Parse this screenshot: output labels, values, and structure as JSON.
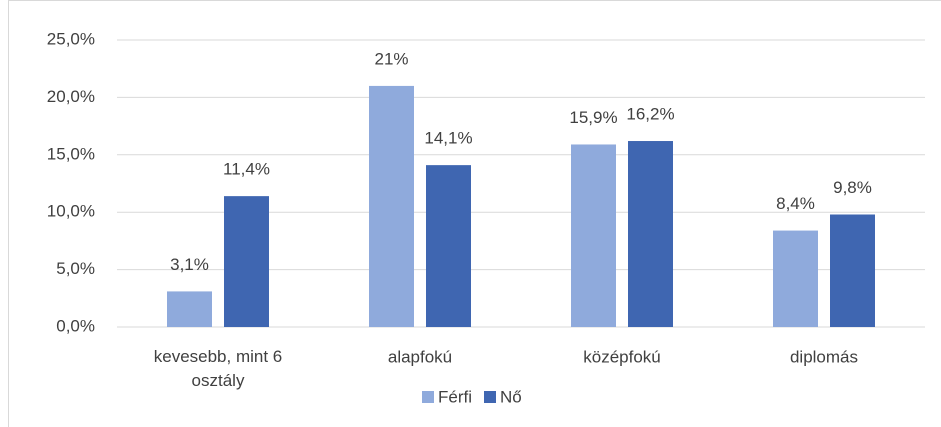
{
  "chart_data": {
    "type": "bar",
    "categories": [
      "kevesebb, mint 6 osztály",
      "alapfokú",
      "középfokú",
      "diplomás"
    ],
    "series": [
      {
        "name": "Férfi",
        "color": "#8faadc",
        "values": [
          3.1,
          21,
          15.9,
          8.4
        ],
        "value_labels": [
          "3,1%",
          "21%",
          "15,9%",
          "8,4%"
        ]
      },
      {
        "name": "Nő",
        "color": "#3f66b1",
        "values": [
          11.4,
          14.1,
          16.2,
          9.8
        ],
        "value_labels": [
          "11,4%",
          "14,1%",
          "16,2%",
          "9,8%"
        ]
      }
    ],
    "ylim": [
      0,
      25
    ],
    "yticks": [
      {
        "value": 0,
        "label": "0,0%"
      },
      {
        "value": 5,
        "label": "5,0%"
      },
      {
        "value": 10,
        "label": "10,0%"
      },
      {
        "value": 15,
        "label": "15,0%"
      },
      {
        "value": 20,
        "label": "20,0%"
      },
      {
        "value": 25,
        "label": "25,0%"
      }
    ],
    "grid": true,
    "legend": "bottom"
  }
}
